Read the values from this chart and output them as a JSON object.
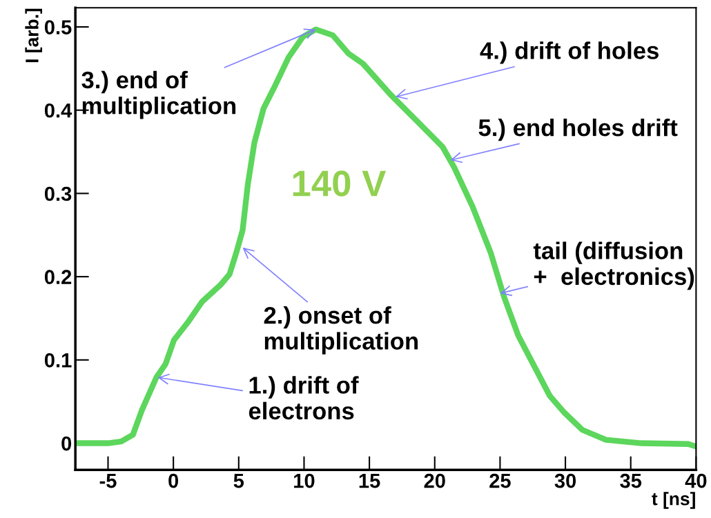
{
  "chart_data": {
    "type": "line",
    "xlabel": "t [ns]",
    "ylabel": "I [arb.]",
    "xlim": [
      -7.5,
      40
    ],
    "ylim": [
      -0.032,
      0.523
    ],
    "xticks": [
      -5,
      0,
      5,
      10,
      15,
      20,
      25,
      30,
      35,
      40
    ],
    "yticks": [
      0,
      0.1,
      0.2,
      0.3,
      0.4,
      0.5
    ],
    "grid": false,
    "legend": false,
    "marker": "none",
    "line_style": "solid",
    "series": [
      {
        "color": "#5cd65c",
        "x": [
          -7.5,
          -5,
          -4,
          -3.1,
          -2.4,
          -1.3,
          -0.6,
          0.05,
          1.1,
          2.2,
          3.6,
          4.3,
          4.8,
          5.3,
          5.7,
          6.2,
          6.9,
          7.8,
          8.8,
          9.9,
          10.9,
          12.2,
          13.4,
          14.5,
          16.6,
          18.7,
          20.6,
          21.5,
          22.9,
          24.3,
          25.3,
          26.4,
          27.8,
          28.8,
          29.9,
          31.3,
          33.1,
          35.8,
          39.4,
          40
        ],
        "values": [
          0.0,
          0.0,
          0.002,
          0.01,
          0.04,
          0.079,
          0.095,
          0.124,
          0.145,
          0.17,
          0.19,
          0.203,
          0.228,
          0.256,
          0.311,
          0.361,
          0.402,
          0.43,
          0.463,
          0.488,
          0.497,
          0.49,
          0.468,
          0.456,
          0.419,
          0.386,
          0.356,
          0.331,
          0.284,
          0.228,
          0.176,
          0.129,
          0.087,
          0.057,
          0.037,
          0.016,
          0.004,
          0.0,
          -0.001,
          -0.004
        ]
      }
    ],
    "annotations": [
      "140 V",
      {
        "text": "1.) drift of\nelectrons",
        "x": -1.2,
        "y": 0.079
      },
      {
        "text": "2.) onset of\nmultiplication",
        "x": 5.3,
        "y": 0.235
      },
      {
        "text": "3.) end of\nmultiplication",
        "x": 10.9,
        "y": 0.497
      },
      {
        "text": "4.) drift of holes",
        "x": 17.0,
        "y": 0.416
      },
      {
        "text": "5.) end holes drift",
        "x": 21.2,
        "y": 0.34
      },
      {
        "text": "tail (diffusion\n+  electronics)",
        "x": 25.0,
        "y": 0.18
      }
    ]
  }
}
